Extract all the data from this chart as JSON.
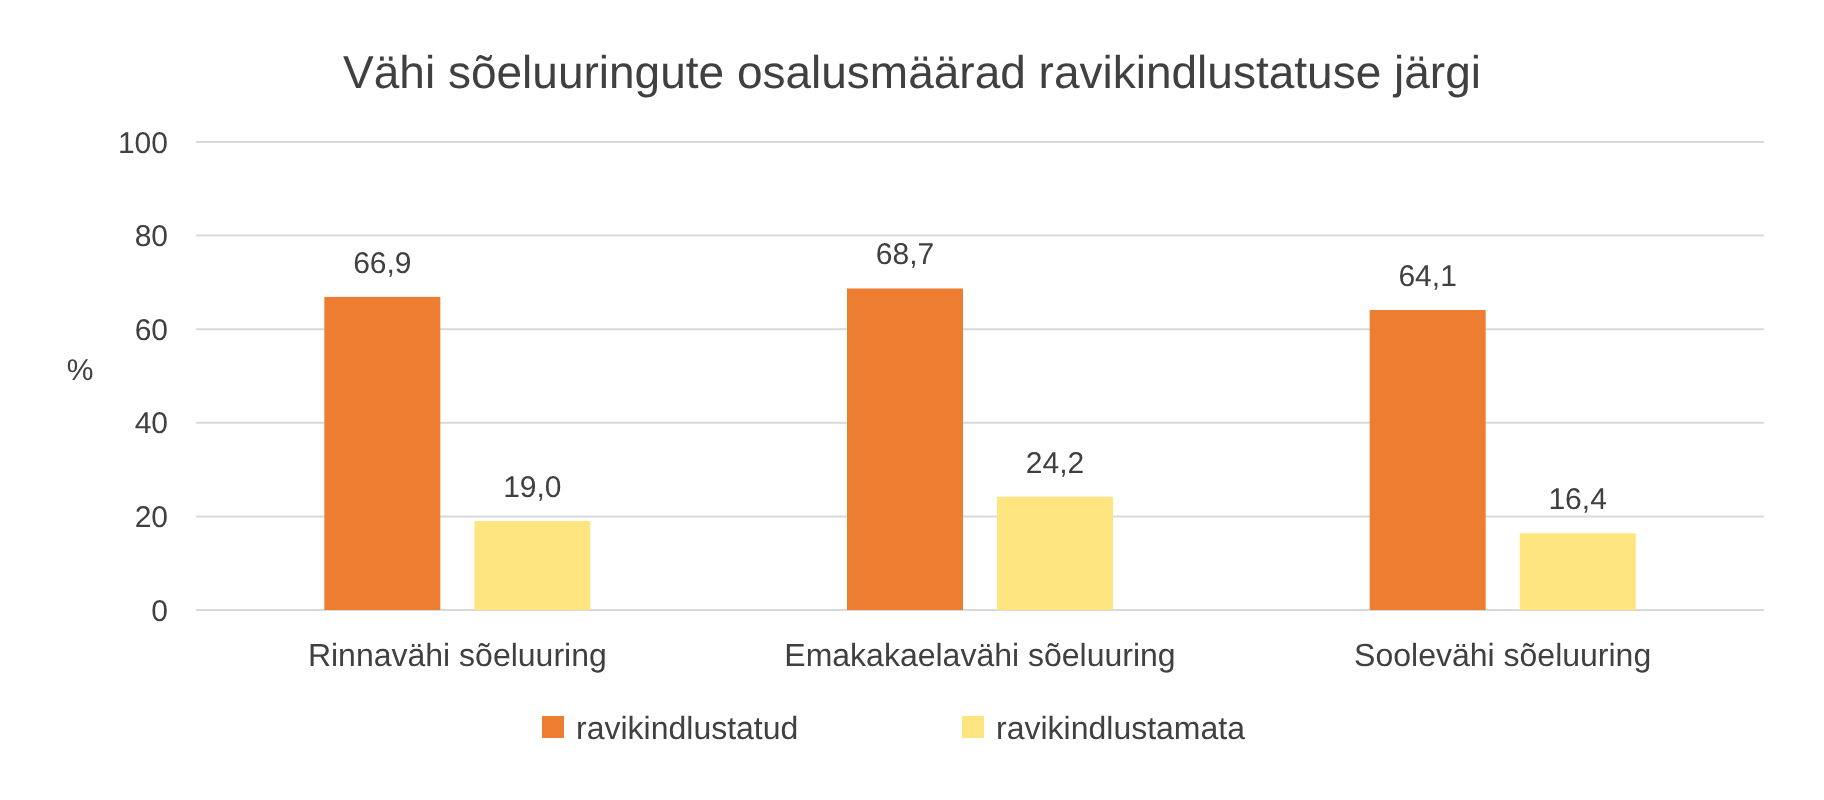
{
  "chart_data": {
    "type": "bar",
    "title": "Vähi sõeluuringute osalusmäärad ravikindlustatuse järgi",
    "ylabel": "%",
    "categories": [
      "Rinnavähi sõeluuring",
      "Emakakaelavähi sõeluuring",
      "Soolevähi sõeluuring"
    ],
    "series": [
      {
        "name": "ravikindlustatud",
        "color": "#ed7d31",
        "values": [
          66.9,
          68.7,
          64.1
        ],
        "value_labels": [
          "66,9",
          "68,7",
          "64,1"
        ]
      },
      {
        "name": "ravikindlustamata",
        "color": "#ffe57f",
        "values": [
          19.0,
          24.2,
          16.4
        ],
        "value_labels": [
          "19,0",
          "24,2",
          "16,4"
        ]
      }
    ],
    "ylim": [
      0,
      100
    ],
    "yticks": [
      0,
      20,
      40,
      60,
      80,
      100
    ],
    "grid": "y",
    "legend": "bottom"
  }
}
